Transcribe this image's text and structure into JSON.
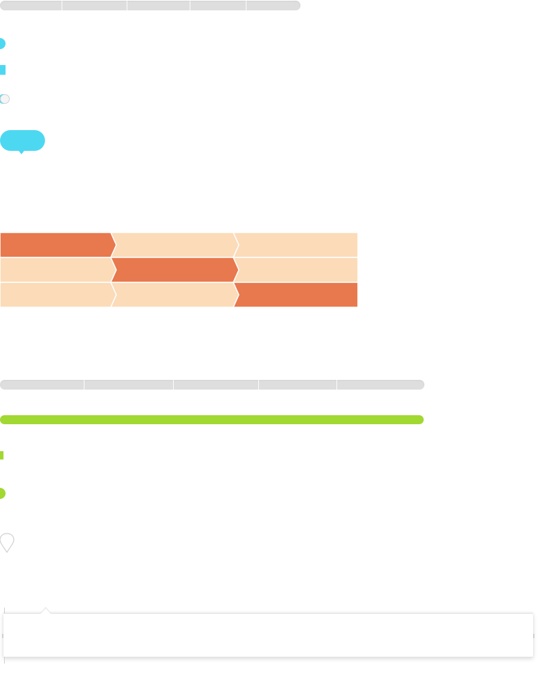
{
  "colors": {
    "cyan": "#4dd8f2",
    "green": "#a1d831",
    "step_active": "#e8784d",
    "step_inactive": "#fbdbb8",
    "track": "#dedede"
  },
  "top_track": {
    "segments": 5
  },
  "bottom_track": {
    "segments": 5
  },
  "toggle": {
    "state": "off"
  },
  "tooltip": {
    "text": ""
  },
  "steps": {
    "columns": 3,
    "rows": 3,
    "active_step_per_row": [
      0,
      1,
      2
    ]
  },
  "progress": {
    "value": 100
  },
  "card": {
    "text": ""
  },
  "icons": {
    "pin": "map-pin-icon"
  }
}
